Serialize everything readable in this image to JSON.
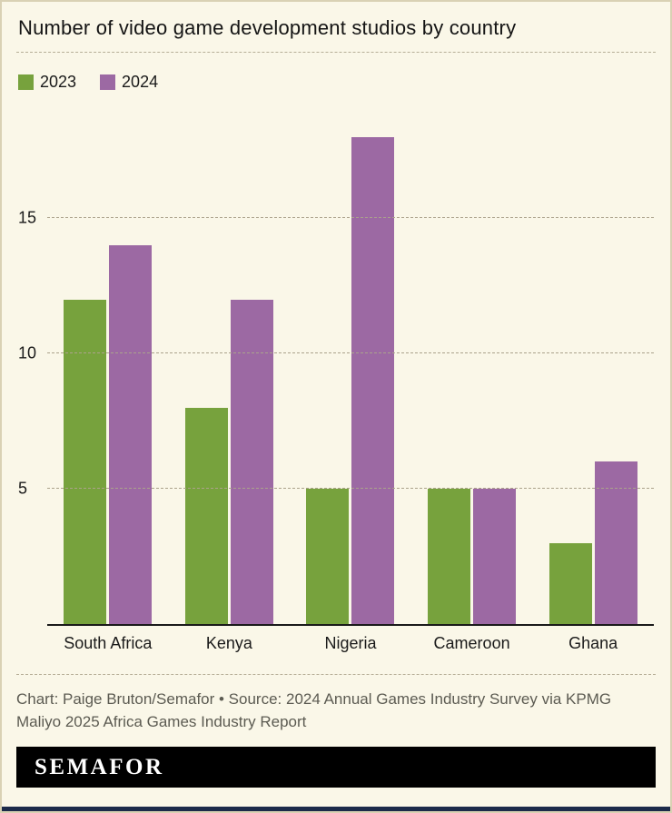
{
  "title": "Number of video game development studios by country",
  "legend": {
    "items": [
      {
        "label": "2023",
        "color": "#77a23d"
      },
      {
        "label": "2024",
        "color": "#9c69a3"
      }
    ]
  },
  "chart_data": {
    "type": "bar",
    "categories": [
      "South Africa",
      "Kenya",
      "Nigeria",
      "Cameroon",
      "Ghana"
    ],
    "series": [
      {
        "name": "2023",
        "color": "#77a23d",
        "values": [
          12,
          8,
          5,
          5,
          3
        ]
      },
      {
        "name": "2024",
        "color": "#9c69a3",
        "values": [
          14,
          12,
          18,
          5,
          6
        ]
      }
    ],
    "title": "Number of video game development studios by country",
    "xlabel": "",
    "ylabel": "",
    "yticks": [
      5,
      10,
      15
    ],
    "ylim": [
      0,
      18.8
    ],
    "grid": "dashed-horizontal",
    "legend_position": "top-left"
  },
  "footer": {
    "credit": "Chart: Paige Bruton/Semafor • Source: 2024 Annual Games Industry Survey via KPMG Maliyo 2025 Africa Games Industry Report",
    "brand": "SEMAFOR"
  },
  "colors": {
    "background": "#faf7e8",
    "border": "#d9d1b4",
    "axis": "#1a1a1a",
    "grid": "#aba28b",
    "credit_text": "#5c5b52",
    "brand_bar": "#000000",
    "bottom_accent": "#1c2a4a"
  }
}
